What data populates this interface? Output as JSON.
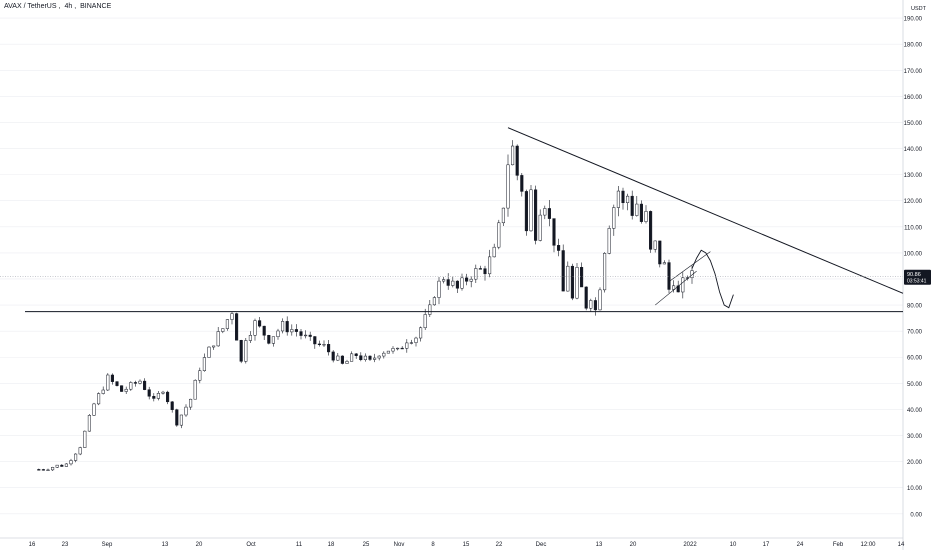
{
  "header": {
    "symbol": "AVAX / TetherUS",
    "interval": "4h",
    "exchange": "BINANCE"
  },
  "currency": "USDT",
  "price_label": {
    "price": "90.86",
    "countdown": "03:53:41"
  },
  "colors": {
    "background": "#ffffff",
    "up": "#ffffff",
    "down": "#131722",
    "wick": "#131722",
    "line": "#131722",
    "grid": "#eceef2",
    "label_bg": "#131722"
  },
  "chart_data": {
    "type": "candlestick",
    "y_axis": {
      "ticks": [
        0,
        10,
        20,
        30,
        40,
        50,
        60,
        70,
        80,
        90,
        100,
        110,
        120,
        130,
        140,
        150,
        160,
        170,
        180,
        190
      ],
      "tick_labels": [
        "0.00",
        "10.00",
        "20.00",
        "30.00",
        "40.00",
        "50.00",
        "60.00",
        "70.00",
        "80.00",
        "90.00",
        "100.00",
        "110.00",
        "120.00",
        "130.00",
        "140.00",
        "150.00",
        "160.00",
        "170.00",
        "180.00",
        "190.00"
      ],
      "range": [
        -2,
        200
      ]
    },
    "x_axis": {
      "tick_labels": [
        "16",
        "23",
        "Sep",
        "13",
        "20",
        "Oct",
        "11",
        "18",
        "25",
        "Nov",
        "8",
        "15",
        "22",
        "Dec",
        "13",
        "20",
        "2022",
        "10",
        "17",
        "24",
        "Feb",
        "12:00",
        "14"
      ]
    },
    "anchors": [
      [
        8,
        17
      ],
      [
        14,
        19
      ],
      [
        17,
        26
      ],
      [
        20,
        42
      ],
      [
        23,
        52
      ],
      [
        26,
        47
      ],
      [
        30,
        51
      ],
      [
        33,
        43
      ],
      [
        35,
        48
      ],
      [
        38,
        35
      ],
      [
        41,
        44
      ],
      [
        43,
        56
      ],
      [
        46,
        66
      ],
      [
        48,
        71
      ],
      [
        50,
        78
      ],
      [
        52,
        58
      ],
      [
        53,
        68
      ],
      [
        55,
        73
      ],
      [
        58,
        67
      ],
      [
        61,
        72
      ],
      [
        64,
        70
      ],
      [
        67,
        66
      ],
      [
        70,
        64
      ],
      [
        74,
        57
      ],
      [
        77,
        61
      ],
      [
        80,
        58
      ],
      [
        82,
        62
      ],
      [
        84,
        63
      ],
      [
        86,
        62
      ],
      [
        88,
        67
      ],
      [
        90,
        68
      ],
      [
        93,
        78
      ],
      [
        94,
        85
      ],
      [
        96,
        91
      ],
      [
        99,
        86
      ],
      [
        102,
        92
      ],
      [
        105,
        94
      ],
      [
        107,
        100
      ],
      [
        108,
        109
      ],
      [
        109,
        119
      ],
      [
        110,
        135
      ],
      [
        111,
        140
      ],
      [
        112,
        130
      ],
      [
        113,
        125
      ],
      [
        114,
        108
      ],
      [
        115,
        123
      ],
      [
        116,
        108
      ],
      [
        117,
        118
      ],
      [
        118,
        120
      ],
      [
        119,
        112
      ],
      [
        120,
        105
      ],
      [
        121,
        98
      ],
      [
        122,
        85
      ],
      [
        123,
        96
      ],
      [
        124,
        82
      ],
      [
        125,
        92
      ],
      [
        126,
        86
      ],
      [
        127,
        80
      ],
      [
        128,
        84
      ],
      [
        129,
        78
      ],
      [
        130,
        88
      ],
      [
        131,
        102
      ],
      [
        132,
        112
      ],
      [
        133,
        118
      ],
      [
        134,
        124
      ],
      [
        135,
        118
      ],
      [
        136,
        122
      ],
      [
        137,
        116
      ],
      [
        138,
        119
      ],
      [
        139,
        112
      ],
      [
        140,
        114
      ],
      [
        141,
        100
      ],
      [
        142,
        103
      ],
      [
        143,
        97
      ],
      [
        144,
        95
      ],
      [
        145,
        86
      ],
      [
        146,
        90
      ],
      [
        147,
        84
      ],
      [
        148,
        88
      ],
      [
        149,
        92
      ],
      [
        150,
        91
      ]
    ],
    "annotations": {
      "descending_trendline": {
        "from": {
          "x": 110,
          "y": 148
        },
        "to": {
          "x": 195,
          "y": 84.5
        }
      },
      "support_line": {
        "from": {
          "x": 0,
          "y": 77.5
        },
        "to": {
          "x": 195,
          "y": 77.5
        }
      },
      "rising_channel_lower": {
        "from": {
          "x": 142,
          "y": 80
        },
        "to": {
          "x": 151,
          "y": 93
        }
      },
      "rising_channel_upper": {
        "from": {
          "x": 145,
          "y": 89
        },
        "to": {
          "x": 154,
          "y": 100.5
        }
      },
      "projection_path": [
        [
          150,
          94
        ],
        [
          151,
          98
        ],
        [
          152,
          101
        ],
        [
          153,
          100
        ],
        [
          154,
          97
        ],
        [
          155,
          92
        ],
        [
          156,
          85
        ],
        [
          157,
          80
        ],
        [
          158,
          79
        ],
        [
          159,
          84
        ]
      ],
      "last_price_line": 90.86
    }
  }
}
